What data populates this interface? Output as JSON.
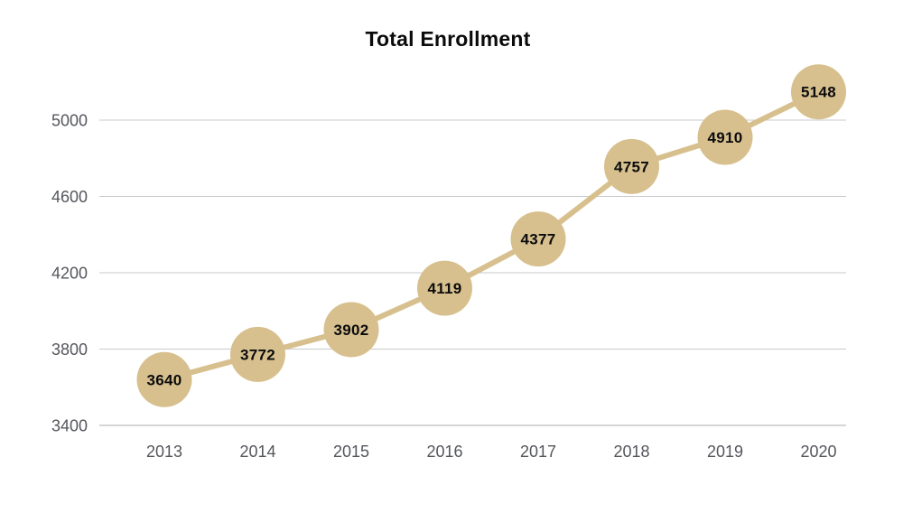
{
  "chart_data": {
    "type": "line",
    "title": "Total Enrollment",
    "categories": [
      "2013",
      "2014",
      "2015",
      "2016",
      "2017",
      "2018",
      "2019",
      "2020"
    ],
    "series": [
      {
        "name": "Total Enrollment",
        "values": [
          3640,
          3772,
          3902,
          4119,
          4377,
          4757,
          4910,
          5148
        ]
      }
    ],
    "xlabel": "",
    "ylabel": "",
    "ylim": [
      3400,
      5200
    ],
    "yticks": [
      3400,
      3800,
      4200,
      4600,
      5000
    ],
    "grid": true,
    "legend_position": "none",
    "point_labels_visible": true,
    "colors": {
      "line": "#D7C08E",
      "marker_fill": "#D7C08E",
      "point_label_text": "#0B0B0C",
      "title_text": "#0B0B0C",
      "axis_tick_text": "#54565B",
      "gridline": "#C9CACC",
      "baseline": "#ABADB0",
      "background": "#FFFFFF"
    }
  }
}
